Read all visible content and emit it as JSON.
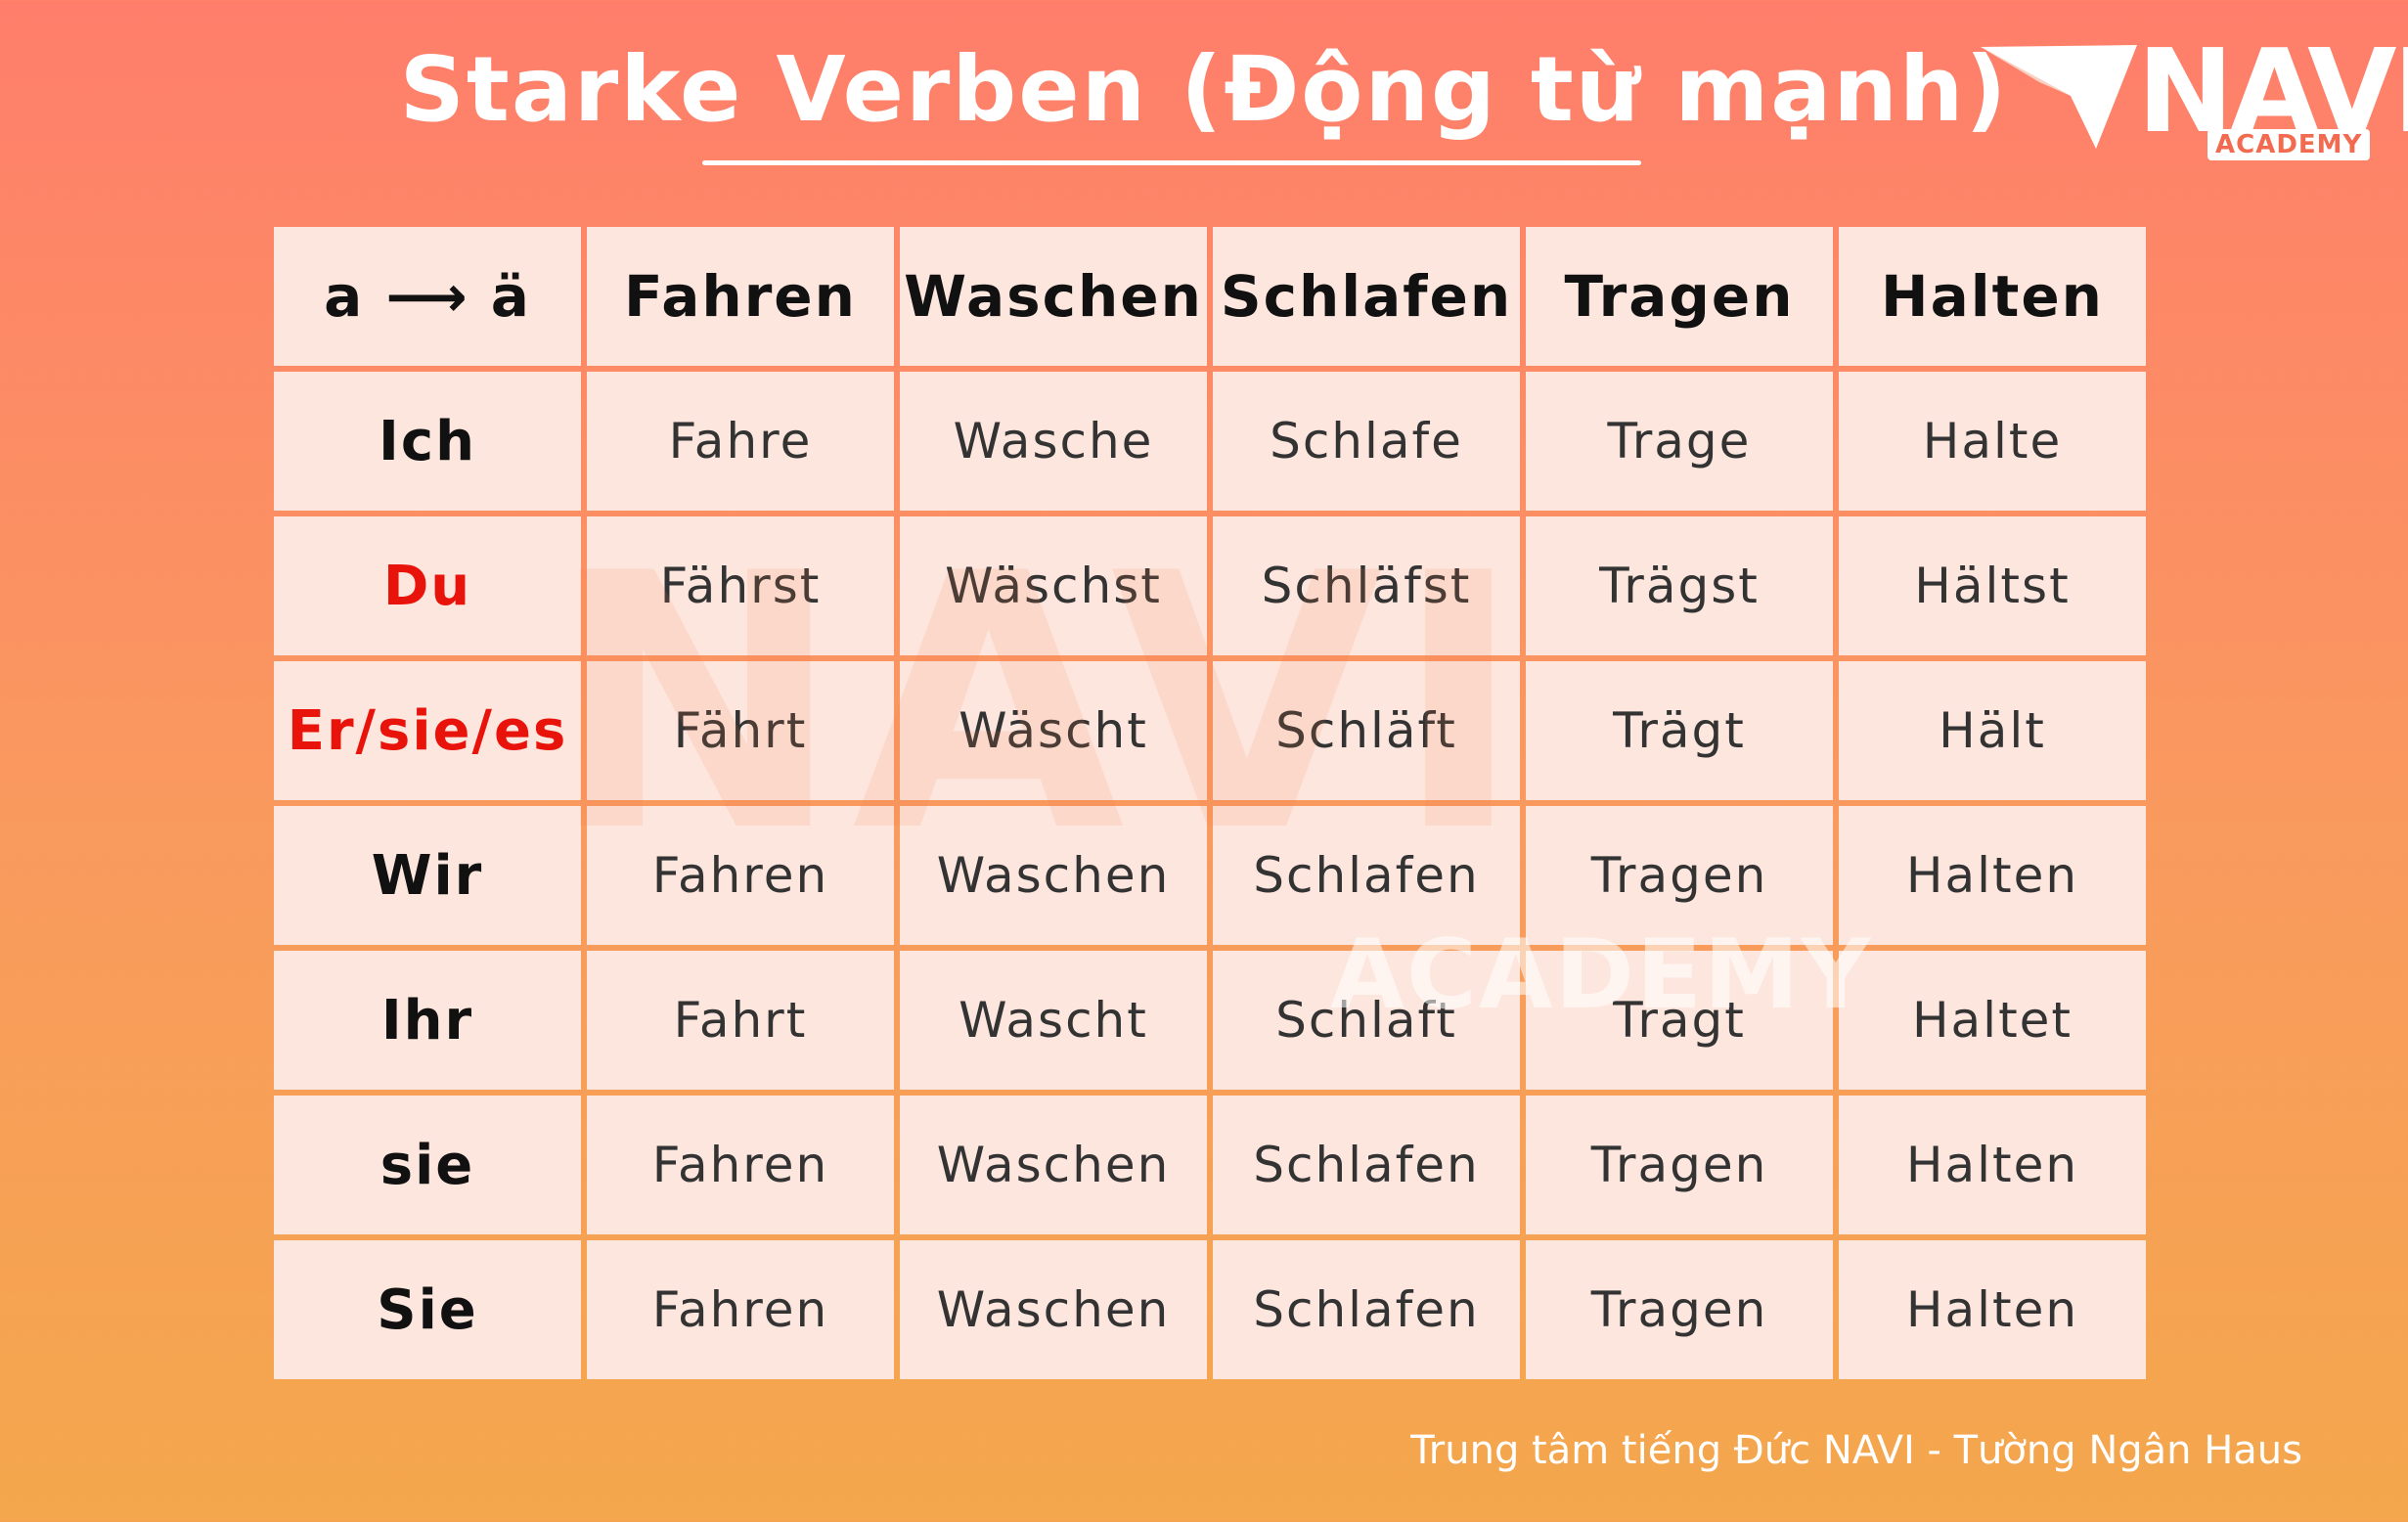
{
  "title": "Starke Verben (Động từ mạnh)",
  "logo": {
    "name": "NAVI",
    "sub": "ACADEMY"
  },
  "watermark": {
    "main": "NAVI",
    "sub": "ACADEMY"
  },
  "colors": {
    "accent_red": "#e8140c",
    "cell_bg": "#fde6dd"
  },
  "table": {
    "corner": "a ⟶ ä",
    "verbs": [
      "Fahren",
      "Waschen",
      "Schlafen",
      "Tragen",
      "Halten"
    ],
    "rows": [
      {
        "pronoun": "Ich",
        "forms": [
          "Fahre",
          "Wasche",
          "Schlafe",
          "Trage",
          "Halte"
        ]
      },
      {
        "pronoun": "Du",
        "forms": [
          "Fährst",
          "Wäschst",
          "Schläfst",
          "Trägst",
          "Hältst"
        ]
      },
      {
        "pronoun": "Er/sie/es",
        "forms": [
          "Fährt",
          "Wäscht",
          "Schläft",
          "Trägt",
          "Hält"
        ]
      },
      {
        "pronoun": "Wir",
        "forms": [
          "Fahren",
          "Waschen",
          "Schlafen",
          "Tragen",
          "Halten"
        ]
      },
      {
        "pronoun": "Ihr",
        "forms": [
          "Fahrt",
          "Wascht",
          "Schlaft",
          "Tragt",
          "Haltet"
        ]
      },
      {
        "pronoun": "sie",
        "forms": [
          "Fahren",
          "Waschen",
          "Schlafen",
          "Tragen",
          "Halten"
        ]
      },
      {
        "pronoun": "Sie",
        "forms": [
          "Fahren",
          "Waschen",
          "Schlafen",
          "Tragen",
          "Halten"
        ]
      }
    ]
  },
  "footer": "Trung tâm tiếng Đức NAVI - Tường Ngân Haus"
}
